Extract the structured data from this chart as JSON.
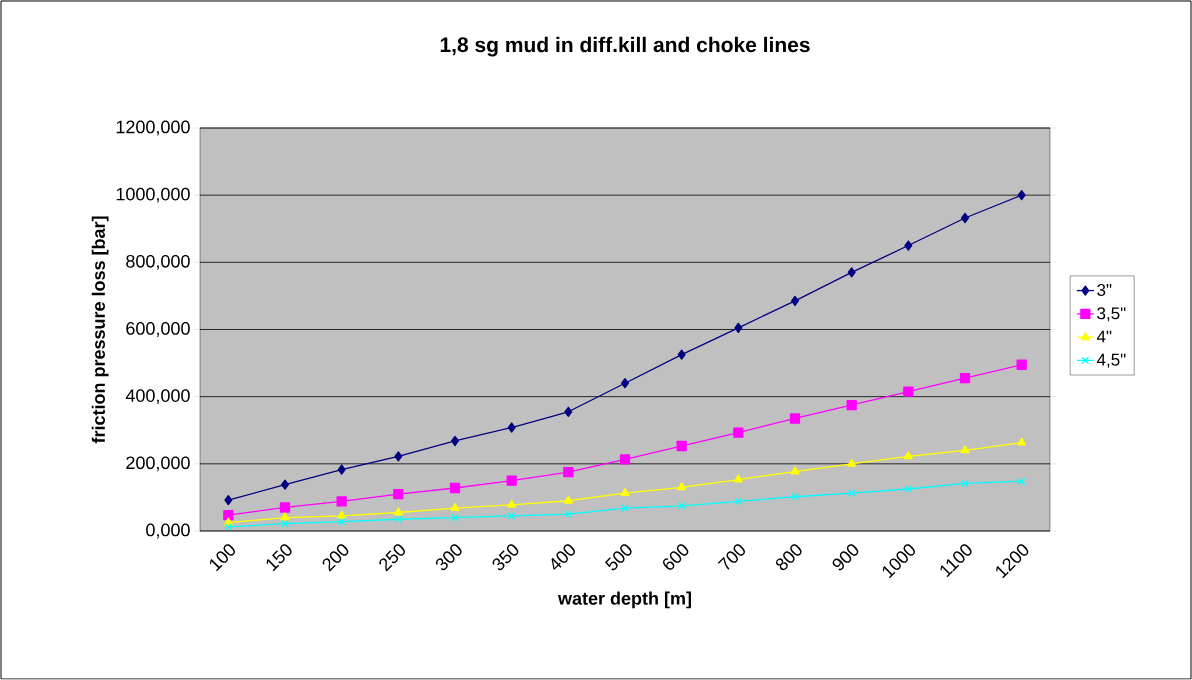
{
  "chart_data": {
    "type": "line",
    "title": "1,8 sg mud in diff.kill and choke lines",
    "xlabel": "water depth [m]",
    "ylabel": "friction pressure loss [bar]",
    "categories": [
      "100",
      "150",
      "200",
      "250",
      "300",
      "350",
      "400",
      "500",
      "600",
      "700",
      "800",
      "900",
      "1000",
      "1100",
      "1200"
    ],
    "series": [
      {
        "name": "3\"",
        "color": "#000080",
        "marker": "diamond",
        "values": [
          92,
          138,
          183,
          222,
          268,
          308,
          355,
          440,
          525,
          605,
          685,
          770,
          850,
          932,
          1000
        ]
      },
      {
        "name": "3,5\"",
        "color": "#ff00ff",
        "marker": "square",
        "values": [
          47,
          70,
          88,
          110,
          128,
          150,
          175,
          213,
          253,
          293,
          335,
          375,
          415,
          455,
          495
        ]
      },
      {
        "name": "4\"",
        "color": "#ffff00",
        "marker": "triangle",
        "values": [
          25,
          40,
          45,
          55,
          68,
          78,
          90,
          113,
          130,
          153,
          177,
          200,
          222,
          240,
          263
        ]
      },
      {
        "name": "4,5\"",
        "color": "#00ffff",
        "marker": "cross",
        "values": [
          12,
          22,
          28,
          35,
          40,
          45,
          50,
          68,
          75,
          88,
          102,
          113,
          125,
          142,
          148
        ]
      }
    ],
    "ylim": [
      0,
      1200
    ],
    "yticks": [
      {
        "value": 0,
        "label": "0,000"
      },
      {
        "value": 200,
        "label": "200,000"
      },
      {
        "value": 400,
        "label": "400,000"
      },
      {
        "value": 600,
        "label": "600,000"
      },
      {
        "value": 800,
        "label": "800,000"
      },
      {
        "value": 1000,
        "label": "1000,000"
      },
      {
        "value": 1200,
        "label": "1200,000"
      }
    ],
    "grid": "y",
    "legend": "right"
  }
}
